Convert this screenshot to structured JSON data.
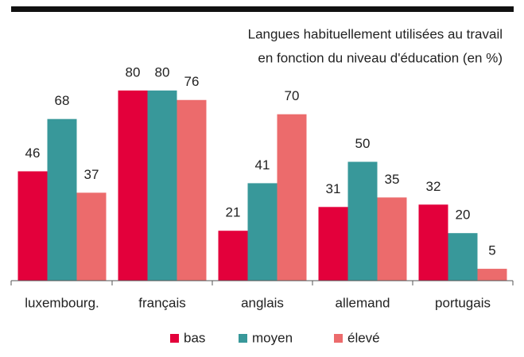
{
  "chart_data": {
    "type": "bar",
    "title": [
      "Langues habituellement utilisées au travail",
      "en fonction du niveau d'éducation (en %)"
    ],
    "categories": [
      "luxembourg.",
      "français",
      "anglais",
      "allemand",
      "portugais"
    ],
    "series": [
      {
        "name": "bas",
        "color": "#e3003b",
        "values": [
          46,
          80,
          21,
          31,
          32
        ]
      },
      {
        "name": "moyen",
        "color": "#38989a",
        "values": [
          68,
          80,
          41,
          50,
          20
        ]
      },
      {
        "name": "élevé",
        "color": "#ec6b6c",
        "values": [
          37,
          76,
          70,
          35,
          5
        ]
      }
    ],
    "ylim": [
      0,
      100
    ]
  }
}
